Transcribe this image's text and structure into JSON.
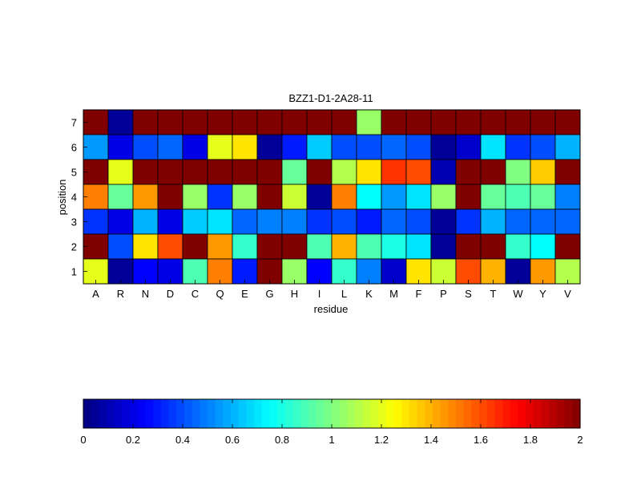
{
  "chart_data": {
    "type": "heatmap",
    "title": "BZZ1-D1-2A28-11",
    "xlabel": "residue",
    "ylabel": "position",
    "x_categories": [
      "A",
      "R",
      "N",
      "D",
      "C",
      "Q",
      "E",
      "G",
      "H",
      "I",
      "L",
      "K",
      "M",
      "F",
      "P",
      "S",
      "T",
      "W",
      "Y",
      "V"
    ],
    "y_categories": [
      "7",
      "6",
      "5",
      "4",
      "3",
      "2",
      "1"
    ],
    "values": [
      [
        2.0,
        0.05,
        2.0,
        2.0,
        2.0,
        2.0,
        2.0,
        2.0,
        2.0,
        2.0,
        2.0,
        1.05,
        2.0,
        2.0,
        2.0,
        2.0,
        2.0,
        2.0,
        2.0,
        2.0
      ],
      [
        0.55,
        0.2,
        0.4,
        0.45,
        0.2,
        1.2,
        1.3,
        0.05,
        0.3,
        0.65,
        0.4,
        0.4,
        0.45,
        0.4,
        0.05,
        0.15,
        0.7,
        0.35,
        0.4,
        0.6
      ],
      [
        2.0,
        1.2,
        2.0,
        2.0,
        2.0,
        2.0,
        2.0,
        2.0,
        0.95,
        2.0,
        1.1,
        1.3,
        1.65,
        1.6,
        0.1,
        2.0,
        2.0,
        1.0,
        1.35,
        2.0
      ],
      [
        1.5,
        0.95,
        1.45,
        2.0,
        1.05,
        0.35,
        1.05,
        2.0,
        1.15,
        0.05,
        1.5,
        0.75,
        0.55,
        0.7,
        1.05,
        2.0,
        0.95,
        0.9,
        0.95,
        0.5
      ],
      [
        0.35,
        0.2,
        0.6,
        0.2,
        0.65,
        0.7,
        0.45,
        0.5,
        0.5,
        0.35,
        0.4,
        0.3,
        0.45,
        0.4,
        0.05,
        0.35,
        0.6,
        0.45,
        0.45,
        0.45
      ],
      [
        2.0,
        0.4,
        1.3,
        1.6,
        2.0,
        1.45,
        0.85,
        2.0,
        2.0,
        0.9,
        1.4,
        0.9,
        0.8,
        0.7,
        0.05,
        2.0,
        2.0,
        0.85,
        0.75,
        2.0
      ],
      [
        1.2,
        0.05,
        0.25,
        0.2,
        0.9,
        1.5,
        0.3,
        2.0,
        1.05,
        0.25,
        0.85,
        0.5,
        0.15,
        1.3,
        1.15,
        1.6,
        1.4,
        0.05,
        1.45,
        1.1
      ]
    ],
    "colormap": "jet",
    "clim": [
      0,
      2
    ],
    "colorbar": {
      "orientation": "horizontal",
      "placement": "bottom",
      "ticks": [
        "0",
        "0.2",
        "0.4",
        "0.6",
        "0.8",
        "1",
        "1.2",
        "1.4",
        "1.6",
        "1.8",
        "2"
      ]
    },
    "grid": false
  }
}
